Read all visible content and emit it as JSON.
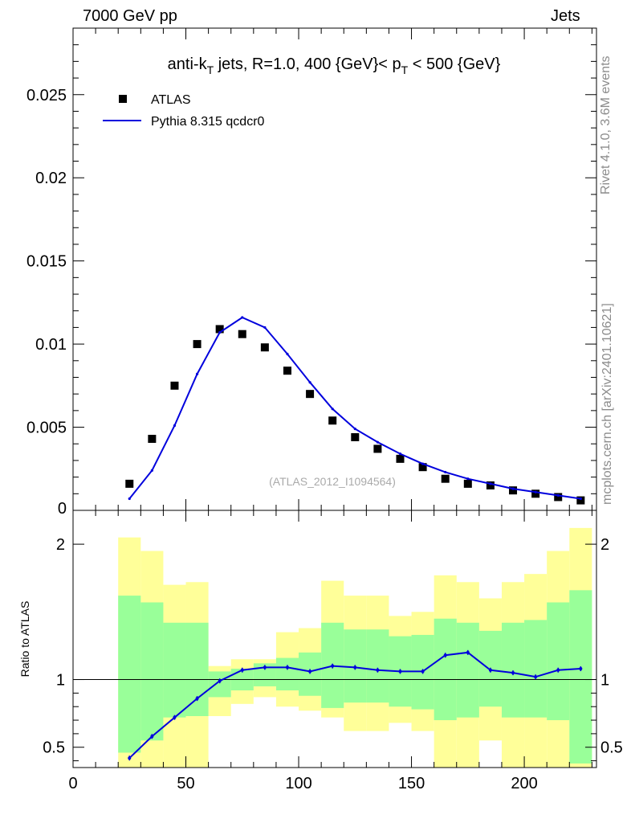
{
  "header": {
    "left": "7000 GeV pp",
    "right": "Jets"
  },
  "side_labels": {
    "rivet": "Rivet 4.1.0,  3.6M events",
    "mcplots": "mcplots.cern.ch [arXiv:2401.10621]"
  },
  "colors": {
    "mc": "#0000dd",
    "data": "#000000",
    "band_outer": "#ffff99",
    "band_inner": "#99ff99",
    "side_text": "#8c8c8c"
  },
  "chart_data": [
    {
      "type": "scatter",
      "title": {
        "prefix": "anti-k",
        "prefix_sub": "T",
        "middle": " jets, R=1.0, 400 {GeV}< p",
        "middle_sub": "T",
        "suffix": " < 500 {GeV}"
      },
      "watermark": "(ATLAS_2012_I1094564)",
      "xlim": [
        0,
        232
      ],
      "ylim": [
        0,
        0.029
      ],
      "yticks": [
        0,
        0.005,
        0.01,
        0.015,
        0.02,
        0.025
      ],
      "ytick_labels": [
        "0",
        "0.005",
        "0.01",
        "0.015",
        "0.02",
        "0.025"
      ],
      "legend_position": "top-left",
      "series": [
        {
          "name": "ATLAS",
          "marker": "square",
          "x": [
            25,
            35,
            45,
            55,
            65,
            75,
            85,
            95,
            105,
            115,
            125,
            135,
            145,
            155,
            165,
            175,
            185,
            195,
            205,
            215,
            225
          ],
          "values": [
            0.0016,
            0.0043,
            0.0075,
            0.01,
            0.0109,
            0.0106,
            0.0098,
            0.0084,
            0.007,
            0.0054,
            0.0044,
            0.0037,
            0.0031,
            0.0026,
            0.0019,
            0.0016,
            0.0015,
            0.0012,
            0.001,
            0.0008,
            0.0006
          ]
        },
        {
          "name": "Pythia 8.315 qcdcr0",
          "marker": "line",
          "x": [
            25,
            35,
            45,
            55,
            65,
            75,
            85,
            95,
            105,
            115,
            125,
            135,
            145,
            155,
            165,
            175,
            185,
            195,
            205,
            215,
            225
          ],
          "values": [
            0.0007,
            0.0024,
            0.0051,
            0.0082,
            0.0107,
            0.0116,
            0.011,
            0.0094,
            0.0077,
            0.0061,
            0.0049,
            0.0041,
            0.0034,
            0.0028,
            0.0023,
            0.0019,
            0.0016,
            0.0013,
            0.0011,
            0.0009,
            0.0007
          ]
        }
      ]
    },
    {
      "type": "line",
      "ylabel": "Ratio to ATLAS",
      "xlim": [
        0,
        232
      ],
      "ylim": [
        0.35,
        2.25
      ],
      "xticks": [
        0,
        50,
        100,
        150,
        200
      ],
      "xtick_labels": [
        "0",
        "50",
        "100",
        "150",
        "200"
      ],
      "yticks": [
        0.5,
        1,
        2
      ],
      "ytick_labels": [
        "0.5",
        "1",
        "2"
      ],
      "bin_edges": [
        20,
        30,
        40,
        50,
        60,
        70,
        80,
        90,
        100,
        110,
        120,
        130,
        140,
        150,
        160,
        170,
        180,
        190,
        200,
        210,
        220,
        230
      ],
      "band_outer": {
        "low": [
          0.3,
          0.3,
          0.3,
          0.3,
          0.73,
          0.82,
          0.87,
          0.8,
          0.77,
          0.72,
          0.62,
          0.62,
          0.68,
          0.62,
          0.32,
          0.3,
          0.55,
          0.3,
          0.3,
          0.3,
          0.3
        ],
        "high": [
          2.05,
          1.95,
          1.7,
          1.72,
          1.1,
          1.15,
          1.15,
          1.35,
          1.38,
          1.73,
          1.62,
          1.62,
          1.47,
          1.5,
          1.77,
          1.72,
          1.6,
          1.72,
          1.78,
          1.95,
          2.12
        ]
      },
      "band_inner": {
        "low": [
          0.46,
          0.55,
          0.72,
          0.73,
          0.87,
          0.92,
          0.95,
          0.92,
          0.88,
          0.79,
          0.83,
          0.83,
          0.8,
          0.78,
          0.7,
          0.72,
          0.8,
          0.72,
          0.72,
          0.7,
          0.38
        ],
        "high": [
          1.62,
          1.57,
          1.42,
          1.42,
          1.06,
          1.08,
          1.12,
          1.16,
          1.2,
          1.42,
          1.37,
          1.37,
          1.32,
          1.33,
          1.45,
          1.42,
          1.36,
          1.42,
          1.44,
          1.57,
          1.66
        ]
      },
      "reference_line": 1,
      "series": [
        {
          "name": "Pythia 8.315 qcdcr0 / ATLAS",
          "x": [
            25,
            35,
            45,
            55,
            65,
            75,
            85,
            95,
            105,
            115,
            125,
            135,
            145,
            155,
            165,
            175,
            185,
            195,
            205,
            215,
            225
          ],
          "values": [
            0.42,
            0.58,
            0.72,
            0.86,
            0.99,
            1.07,
            1.09,
            1.09,
            1.06,
            1.1,
            1.09,
            1.07,
            1.06,
            1.06,
            1.18,
            1.2,
            1.07,
            1.05,
            1.02,
            1.07,
            1.08
          ]
        }
      ]
    }
  ]
}
